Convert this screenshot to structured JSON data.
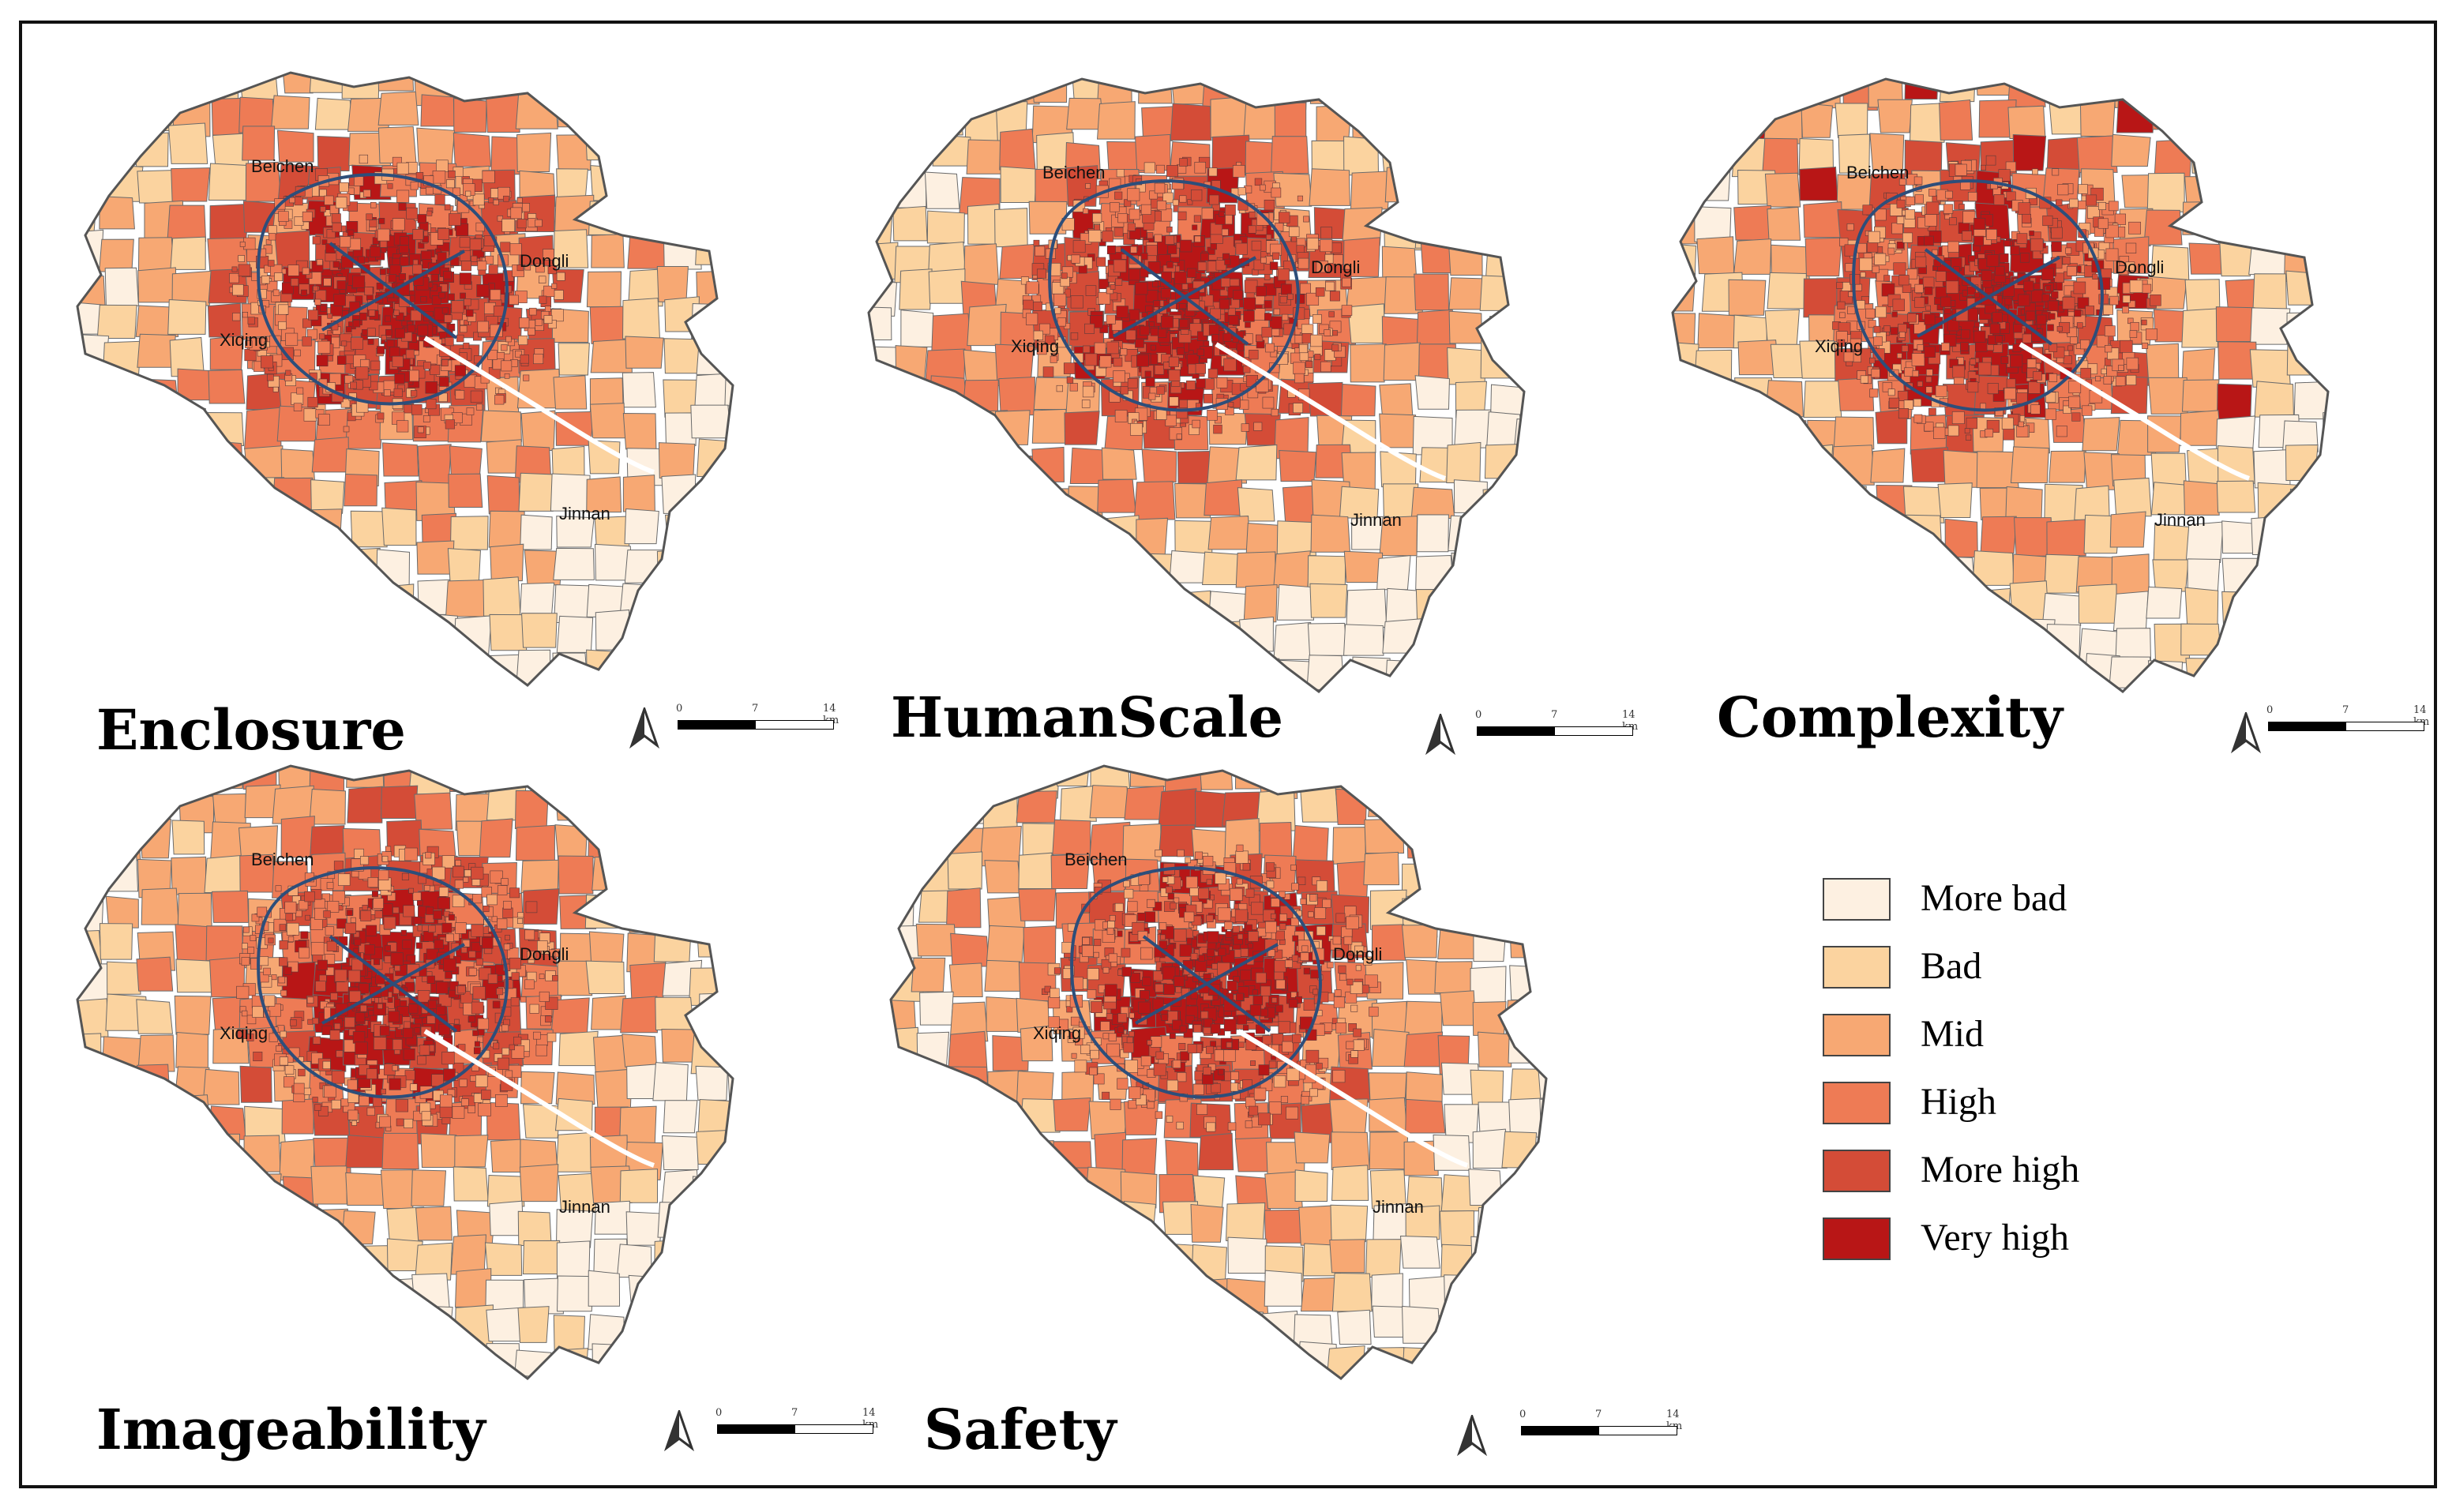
{
  "panels": [
    {
      "title": "Enclosure",
      "districts": [
        "Beichen",
        "Dongli",
        "Xiqing",
        "Jinnan"
      ],
      "scale": {
        "ticks": [
          "0",
          "7",
          "14 km"
        ]
      }
    },
    {
      "title": "HumanScale",
      "districts": [
        "Beichen",
        "Dongli",
        "Xiqing",
        "Jinnan"
      ],
      "scale": {
        "ticks": [
          "0",
          "7",
          "14 km"
        ]
      }
    },
    {
      "title": "Complexity",
      "districts": [
        "Beichen",
        "Dongli",
        "Xiqing",
        "Jinnan"
      ],
      "scale": {
        "ticks": [
          "0",
          "7",
          "14 km"
        ]
      }
    },
    {
      "title": "Imageability",
      "districts": [
        "Beichen",
        "Dongli",
        "Xiqing",
        "Jinnan"
      ],
      "scale": {
        "ticks": [
          "0",
          "7",
          "14 km"
        ]
      }
    },
    {
      "title": "Safety",
      "districts": [
        "Beichen",
        "Dongli",
        "Xiqing",
        "Jinnan"
      ],
      "scale": {
        "ticks": [
          "0",
          "7",
          "14 km"
        ]
      }
    }
  ],
  "legend": [
    {
      "label": "More bad",
      "color": "#fdf0e1"
    },
    {
      "label": "Bad",
      "color": "#fbd39f"
    },
    {
      "label": "Mid",
      "color": "#f7a873"
    },
    {
      "label": "High",
      "color": "#ee7b55"
    },
    {
      "label": "More high",
      "color": "#d44c37"
    },
    {
      "label": "Very high",
      "color": "#b81616"
    }
  ]
}
